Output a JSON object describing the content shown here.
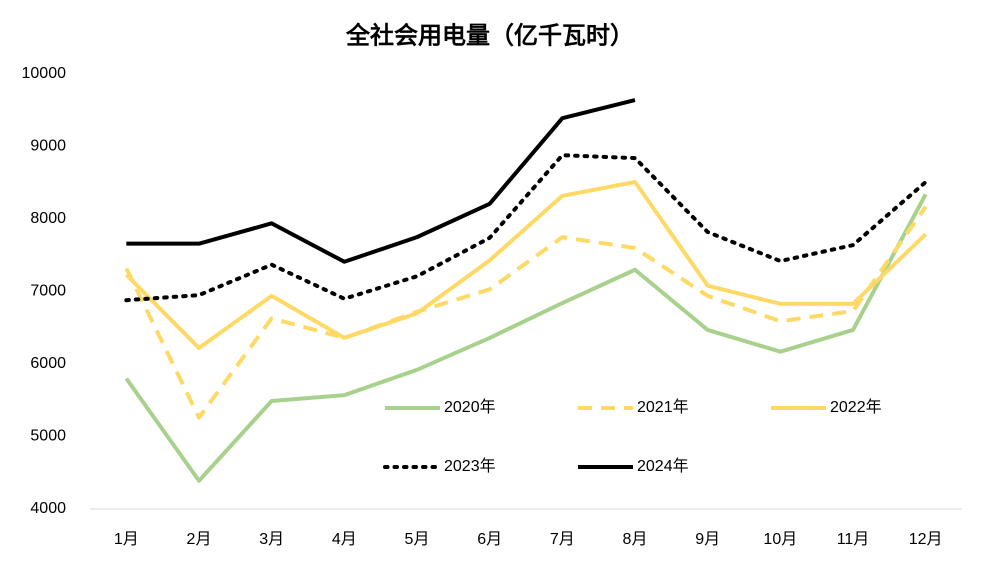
{
  "chart_data": {
    "type": "line",
    "title": "全社会用电量（亿千瓦时）",
    "categories": [
      "1月",
      "2月",
      "3月",
      "4月",
      "5月",
      "6月",
      "7月",
      "8月",
      "9月",
      "10月",
      "11月",
      "12月"
    ],
    "ylim": [
      4000,
      10000
    ],
    "yticks": [
      4000,
      5000,
      6000,
      7000,
      8000,
      9000,
      10000
    ],
    "grid": false,
    "legend": "inside",
    "series": [
      {
        "name": "2020年",
        "color": "#a9d18e",
        "dash": "solid",
        "values": [
          5800,
          4390,
          5490,
          5570,
          5920,
          6360,
          6840,
          7300,
          6470,
          6170,
          6470,
          8340
        ]
      },
      {
        "name": "2021年",
        "color": "#ffd966",
        "dash": "dashed",
        "values": [
          7320,
          5260,
          6630,
          6360,
          6720,
          7030,
          7750,
          7600,
          6940,
          6590,
          6730,
          8170
        ]
      },
      {
        "name": "2022年",
        "color": "#ffd966",
        "dash": "solid",
        "values": [
          7230,
          6220,
          6940,
          6360,
          6700,
          7430,
          8320,
          8510,
          7080,
          6830,
          6830,
          7790
        ]
      },
      {
        "name": "2023年",
        "color": "#000000",
        "dash": "dotted",
        "values": [
          6880,
          6950,
          7370,
          6900,
          7210,
          7740,
          8880,
          8840,
          7820,
          7420,
          7640,
          8510
        ]
      },
      {
        "name": "2024年",
        "color": "#000000",
        "dash": "solid",
        "values": [
          7660,
          7660,
          7940,
          7410,
          7750,
          8210,
          9390,
          9640,
          null,
          null,
          null,
          null
        ]
      }
    ]
  }
}
